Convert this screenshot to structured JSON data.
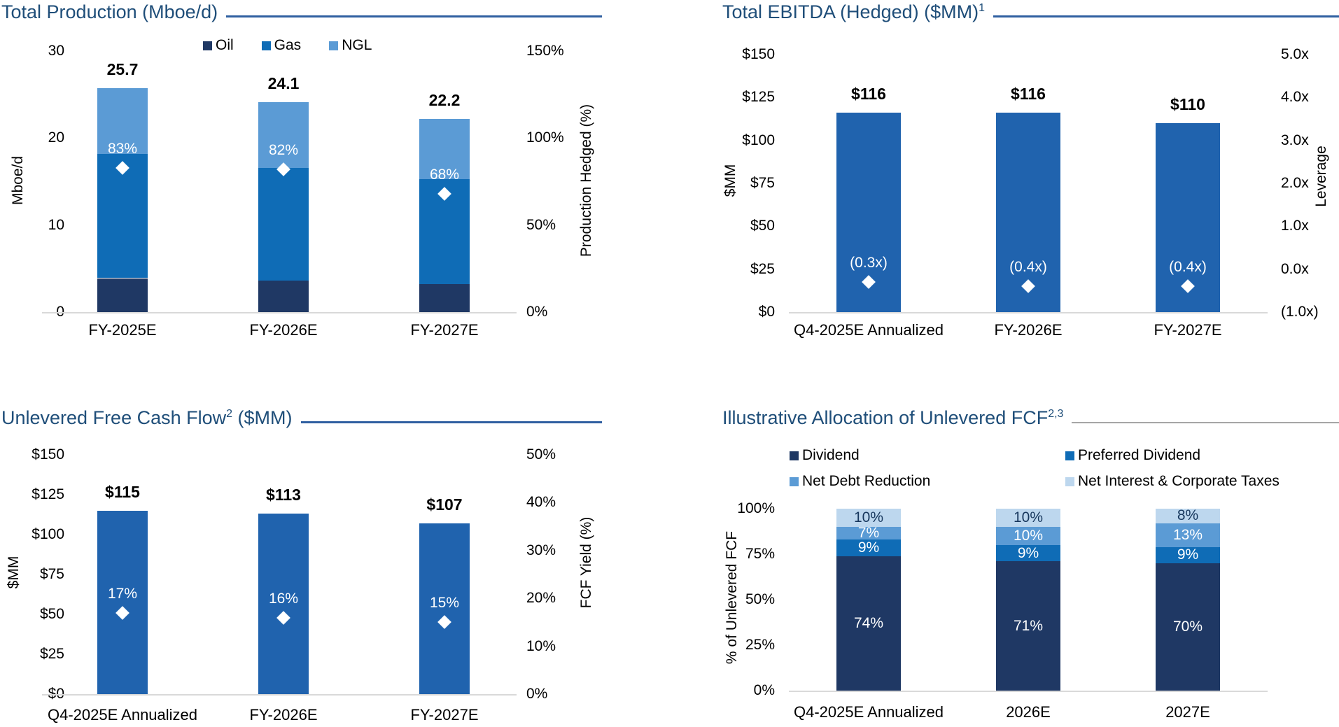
{
  "page": {
    "background": "#FFFFFF"
  },
  "colors": {
    "title_text": "#1F4E79",
    "underline_blue": "#2F5FA0",
    "underline_gray": "#A6A6A6",
    "baseline": "#D9D9D9",
    "navy": "#1F3864",
    "bright_blue": "#0F6CB6",
    "bar_blue": "#2063AE",
    "light_blue": "#5B9BD5",
    "pale_blue": "#BDD7EE",
    "white": "#FFFFFF",
    "dark_label": "#17375D"
  },
  "chart_data": [
    {
      "id": "production",
      "type": "bar",
      "subtype": "stacked-bar-with-markers",
      "title": {
        "pre": "Total Production (Mboe/d)",
        "sup": "",
        "post": ""
      },
      "underline": "blue",
      "categories": [
        "FY-2025E",
        "FY-2026E",
        "FY-2027E"
      ],
      "series": [
        {
          "name": "Oil",
          "color": "navy",
          "values": [
            3.9,
            3.6,
            3.2
          ]
        },
        {
          "name": "Gas",
          "color": "bright_blue",
          "values": [
            14.3,
            13.0,
            12.1
          ]
        },
        {
          "name": "NGL",
          "color": "light_blue",
          "values": [
            7.5,
            7.5,
            6.9
          ]
        }
      ],
      "totals": [
        "25.7",
        "24.1",
        "22.2"
      ],
      "left_axis": {
        "title": "Mboe/d",
        "min": 0,
        "max": 30,
        "ticks": [
          {
            "v": 0,
            "label": "0"
          },
          {
            "v": 10,
            "label": "10"
          },
          {
            "v": 20,
            "label": "20"
          },
          {
            "v": 30,
            "label": "30"
          }
        ]
      },
      "right_axis": {
        "title": "Production Hedged (%)",
        "min": 0,
        "max": 150,
        "ticks": [
          {
            "v": 0,
            "label": "0%"
          },
          {
            "v": 50,
            "label": "50%"
          },
          {
            "v": 100,
            "label": "100%"
          },
          {
            "v": 150,
            "label": "150%"
          }
        ]
      },
      "markers": {
        "name": "Production Hedged (%)",
        "axis": "right",
        "values": [
          83,
          82,
          68
        ],
        "labels": [
          "83%",
          "82%",
          "68%"
        ]
      },
      "legend": {
        "type": "row",
        "items": [
          "Oil",
          "Gas",
          "NGL"
        ]
      }
    },
    {
      "id": "ebitda",
      "type": "bar",
      "subtype": "bar-with-markers",
      "title": {
        "pre": "Total EBITDA (Hedged) ($MM)",
        "sup": "1",
        "post": ""
      },
      "underline": "blue",
      "categories": [
        "Q4-2025E Annualized",
        "FY-2026E",
        "FY-2027E"
      ],
      "series": [
        {
          "name": "Total EBITDA (Hedged)",
          "color": "bar_blue",
          "values": [
            116,
            116,
            110
          ]
        }
      ],
      "totals": [
        "$116",
        "$116",
        "$110"
      ],
      "left_axis": {
        "title": "$MM",
        "min": 0,
        "max": 150,
        "ticks": [
          {
            "v": 0,
            "label": "$0"
          },
          {
            "v": 25,
            "label": "$25"
          },
          {
            "v": 50,
            "label": "$50"
          },
          {
            "v": 75,
            "label": "$75"
          },
          {
            "v": 100,
            "label": "$100"
          },
          {
            "v": 125,
            "label": "$125"
          },
          {
            "v": 150,
            "label": "$150"
          }
        ]
      },
      "right_axis": {
        "title": "Leverage",
        "min": -1,
        "max": 5,
        "ticks": [
          {
            "v": -1,
            "label": "(1.0x)"
          },
          {
            "v": 0,
            "label": "0.0x"
          },
          {
            "v": 1,
            "label": "1.0x"
          },
          {
            "v": 2,
            "label": "2.0x"
          },
          {
            "v": 3,
            "label": "3.0x"
          },
          {
            "v": 4,
            "label": "4.0x"
          },
          {
            "v": 5,
            "label": "5.0x"
          }
        ]
      },
      "markers": {
        "name": "Leverage",
        "axis": "right",
        "values": [
          -0.3,
          -0.4,
          -0.4
        ],
        "labels": [
          "(0.3x)",
          "(0.4x)",
          "(0.4x)"
        ]
      }
    },
    {
      "id": "ufcf",
      "type": "bar",
      "subtype": "bar-with-markers",
      "title": {
        "pre": "Unlevered Free Cash Flow",
        "sup": "2",
        "post": " ($MM)"
      },
      "underline": "blue",
      "categories": [
        "Q4-2025E Annualized",
        "FY-2026E",
        "FY-2027E"
      ],
      "series": [
        {
          "name": "Unlevered Free Cash Flow",
          "color": "bar_blue",
          "values": [
            115,
            113,
            107
          ]
        }
      ],
      "totals": [
        "$115",
        "$113",
        "$107"
      ],
      "left_axis": {
        "title": "$MM",
        "min": 0,
        "max": 150,
        "ticks": [
          {
            "v": 0,
            "label": "$0"
          },
          {
            "v": 25,
            "label": "$25"
          },
          {
            "v": 50,
            "label": "$50"
          },
          {
            "v": 75,
            "label": "$75"
          },
          {
            "v": 100,
            "label": "$100"
          },
          {
            "v": 125,
            "label": "$125"
          },
          {
            "v": 150,
            "label": "$150"
          }
        ]
      },
      "right_axis": {
        "title": "FCF Yield (%)",
        "min": 0,
        "max": 50,
        "ticks": [
          {
            "v": 0,
            "label": "0%"
          },
          {
            "v": 10,
            "label": "10%"
          },
          {
            "v": 20,
            "label": "20%"
          },
          {
            "v": 30,
            "label": "30%"
          },
          {
            "v": 40,
            "label": "40%"
          },
          {
            "v": 50,
            "label": "50%"
          }
        ]
      },
      "markers": {
        "name": "FCF Yield (%)",
        "axis": "right",
        "values": [
          17,
          16,
          15
        ],
        "labels": [
          "17%",
          "16%",
          "15%"
        ]
      }
    },
    {
      "id": "allocation",
      "type": "bar",
      "subtype": "stacked-bar-100pct",
      "title": {
        "pre": "Illustrative Allocation of Unlevered FCF",
        "sup": "2,3",
        "post": ""
      },
      "underline": "gray",
      "categories": [
        "Q4-2025E Annualized",
        "2026E",
        "2027E"
      ],
      "series": [
        {
          "name": "Dividend",
          "color": "navy",
          "values": [
            74,
            71,
            70
          ],
          "labels": [
            "74%",
            "71%",
            "70%"
          ],
          "label_color": "white"
        },
        {
          "name": "Preferred Dividend",
          "color": "bright_blue",
          "values": [
            9,
            9,
            9
          ],
          "labels": [
            "9%",
            "9%",
            "9%"
          ],
          "label_color": "white"
        },
        {
          "name": "Net Debt Reduction",
          "color": "light_blue",
          "values": [
            7,
            10,
            13
          ],
          "labels": [
            "7%",
            "10%",
            "13%"
          ],
          "label_color": "white"
        },
        {
          "name": "Net Interest & Corporate Taxes",
          "color": "pale_blue",
          "values": [
            10,
            10,
            8
          ],
          "labels": [
            "10%",
            "10%",
            "8%"
          ],
          "label_color": "dark"
        }
      ],
      "left_axis": {
        "title": "% of Unlevered FCF",
        "min": 0,
        "max": 100,
        "ticks": [
          {
            "v": 0,
            "label": "0%"
          },
          {
            "v": 25,
            "label": "25%"
          },
          {
            "v": 50,
            "label": "50%"
          },
          {
            "v": 75,
            "label": "75%"
          },
          {
            "v": 100,
            "label": "100%"
          }
        ]
      },
      "legend": {
        "type": "grid",
        "items": [
          "Dividend",
          "Preferred Dividend",
          "Net Debt Reduction",
          "Net Interest & Corporate Taxes"
        ]
      }
    }
  ]
}
